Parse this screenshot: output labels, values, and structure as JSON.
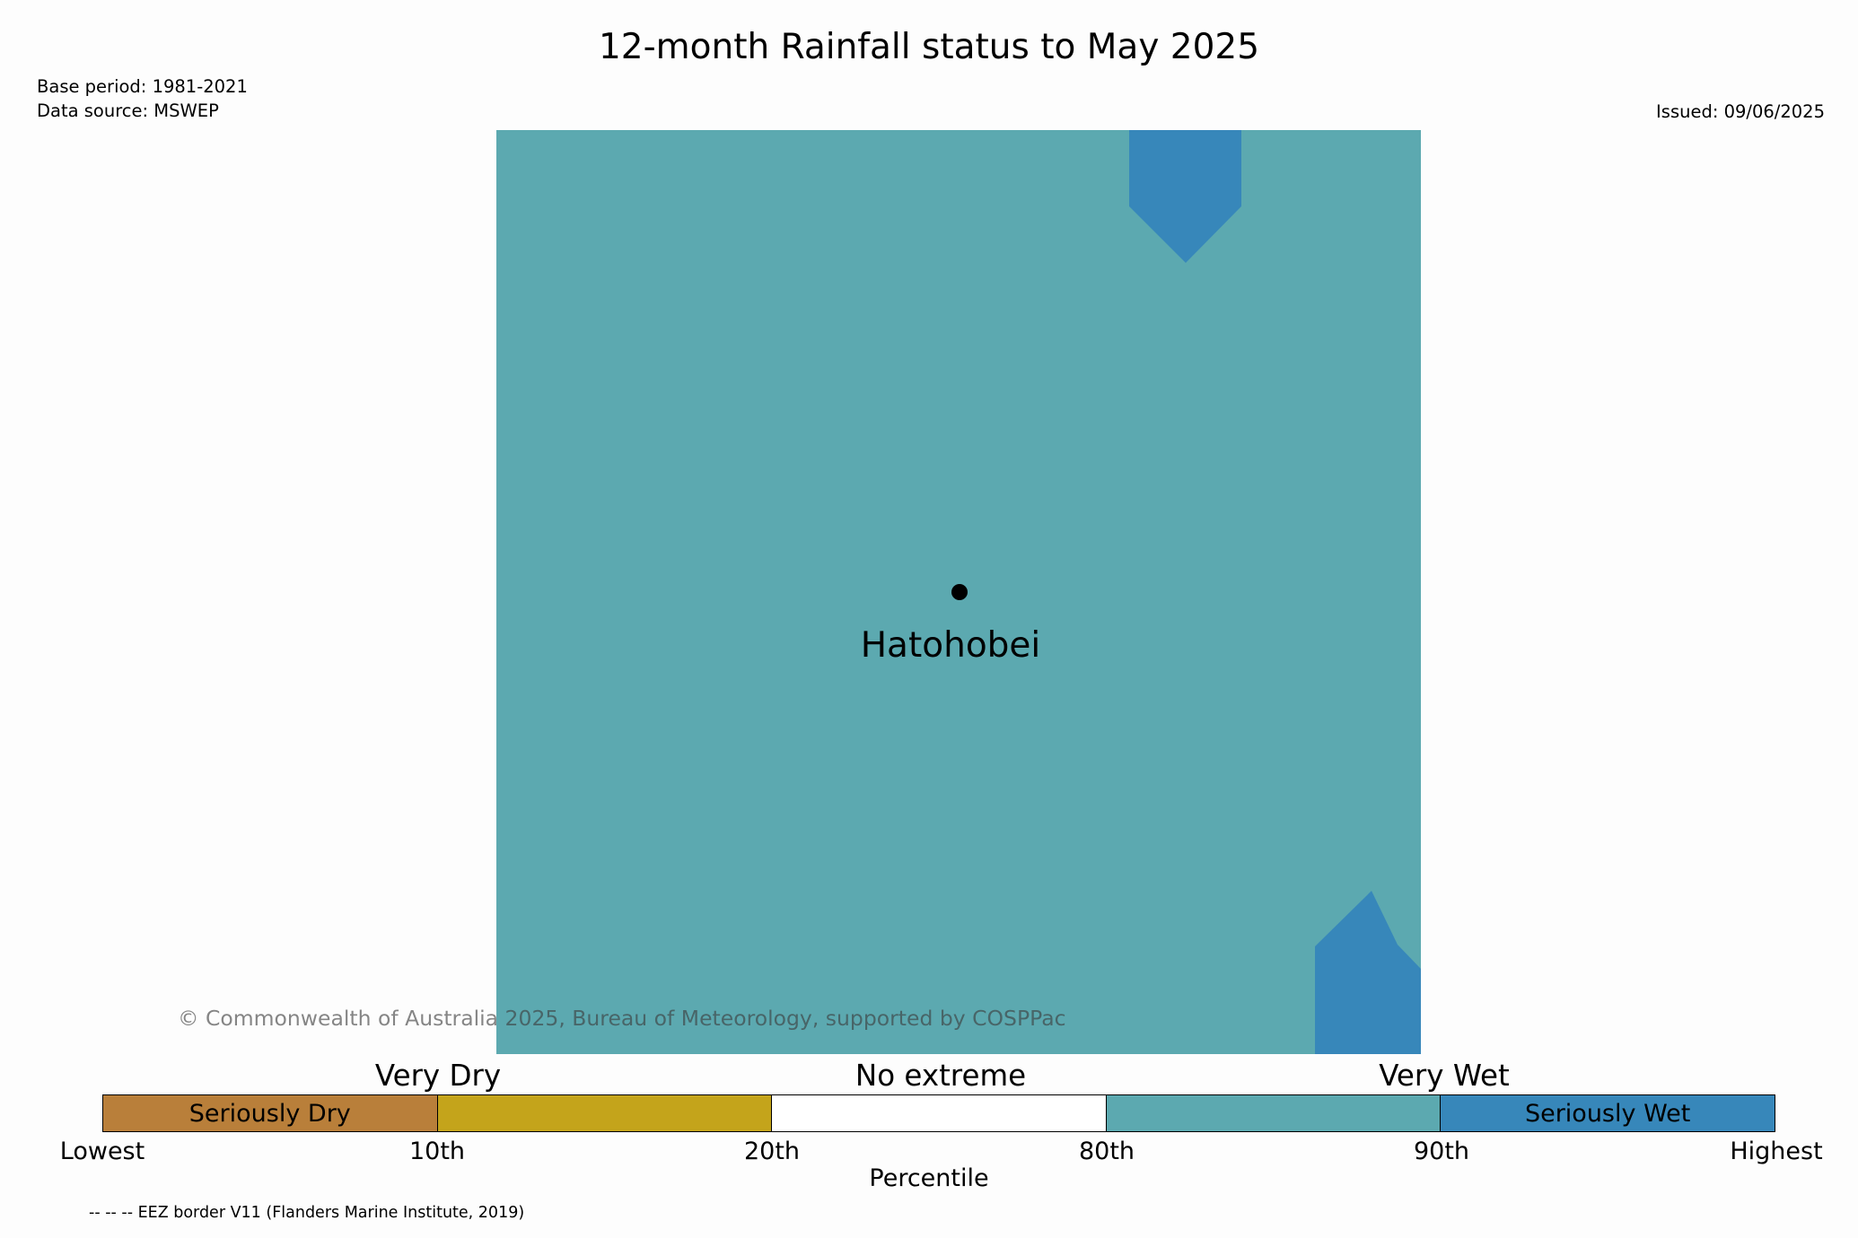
{
  "title": "12-month Rainfall status to May 2025",
  "base_period": "Base period: 1981-2021",
  "data_source": "Data source: MSWEP",
  "issued": "Issued: 09/06/2025",
  "map": {
    "place_name": "Hatohobei",
    "background_category": "80th-90th",
    "colors": {
      "wet": "#5ca9b0",
      "seriously_wet": "#3787ba",
      "marker": "#000000"
    }
  },
  "copyright": "© Commonwealth of Australia 2025, Bureau of Meteorology, supported by COSPPac",
  "legend": {
    "categories": [
      "Very Dry",
      "No extreme",
      "Very Wet"
    ],
    "segments": [
      {
        "label": "Seriously Dry",
        "color": "#b97f3a"
      },
      {
        "label": "",
        "color": "#c4a41b"
      },
      {
        "label": "",
        "color": "#ffffff"
      },
      {
        "label": "",
        "color": "#5ca9b0"
      },
      {
        "label": "Seriously Wet",
        "color": "#3787ba"
      }
    ],
    "ticks": [
      "Lowest",
      "10th",
      "20th",
      "80th",
      "90th",
      "Highest"
    ],
    "axis_label": "Percentile"
  },
  "footnote": "-- -- -- EEZ border V11 (Flanders Marine Institute, 2019)"
}
